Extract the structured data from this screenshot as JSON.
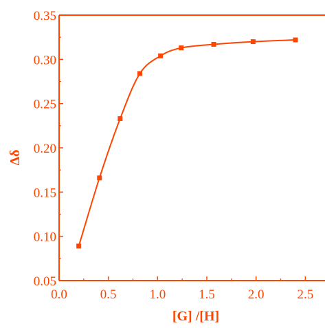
{
  "chart_data": {
    "type": "line",
    "title": "",
    "xlabel": "[G] /[H]",
    "ylabel": "Δδ",
    "xlim": [
      0.0,
      2.7
    ],
    "ylim": [
      0.05,
      0.35
    ],
    "x_ticks": [
      0.0,
      0.5,
      1.0,
      1.5,
      2.0,
      2.5
    ],
    "x_tick_labels": [
      "0.0",
      "0.5",
      "1.0",
      "1.5",
      "2.0",
      "2.5"
    ],
    "y_ticks": [
      0.05,
      0.1,
      0.15,
      0.2,
      0.25,
      0.3,
      0.35
    ],
    "y_tick_labels": [
      "0.05",
      "0.10",
      "0.15",
      "0.20",
      "0.25",
      "0.30",
      "0.35"
    ],
    "grid": false,
    "legend": "none",
    "color": "#ff4500",
    "marker": "square",
    "series": [
      {
        "x": [
          0.2,
          0.41,
          0.62,
          0.82,
          1.03,
          1.24,
          1.57,
          1.97,
          2.4
        ],
        "y": [
          0.089,
          0.166,
          0.233,
          0.284,
          0.304,
          0.313,
          0.317,
          0.32,
          0.322
        ]
      }
    ]
  }
}
